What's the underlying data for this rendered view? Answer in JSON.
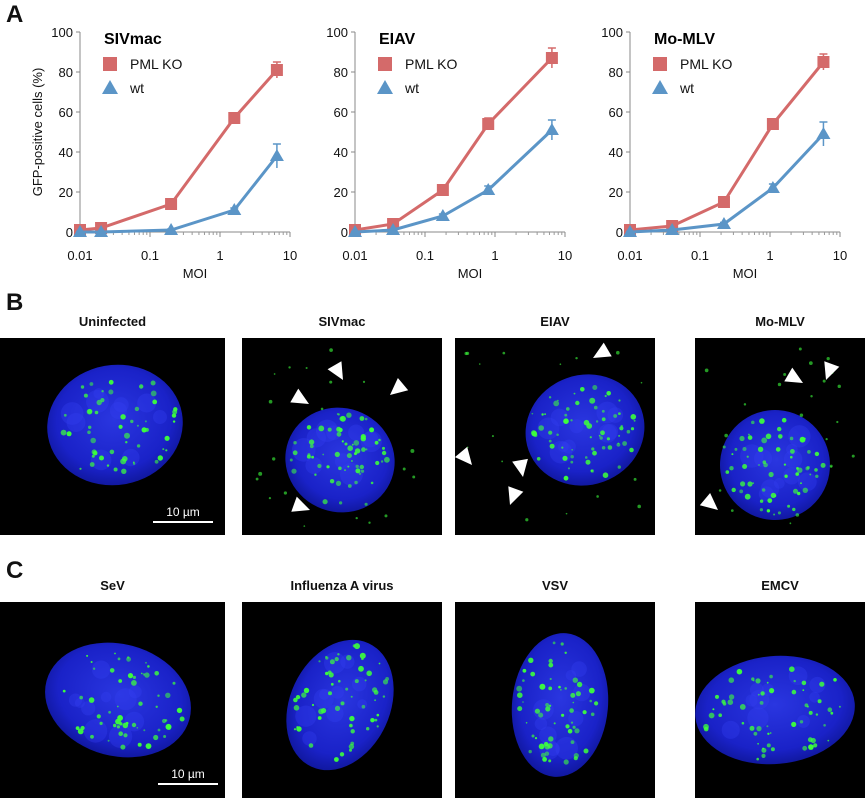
{
  "figure": {
    "panel_a_label": "A",
    "panel_b_label": "B",
    "panel_c_label": "C"
  },
  "chart_data": [
    {
      "type": "line",
      "title": "SIVmac",
      "xlabel": "MOI",
      "ylabel": "GFP-positive cells (%)",
      "x_scale": "log",
      "xlim": [
        0.01,
        10
      ],
      "ylim": [
        0,
        100
      ],
      "x_ticks": [
        "0.01",
        "0.1",
        "1",
        "10"
      ],
      "y_ticks": [
        "0",
        "20",
        "40",
        "60",
        "80",
        "100"
      ],
      "legend_position": "top-left",
      "series": [
        {
          "name": "PML KO",
          "color": "#d46a6a",
          "marker": "square",
          "x": [
            0.01,
            0.02,
            0.2,
            1.6,
            6.5
          ],
          "y": [
            1,
            2,
            14,
            57,
            81
          ],
          "err": [
            0.5,
            0.5,
            1,
            2,
            4
          ]
        },
        {
          "name": "wt",
          "color": "#5b95c7",
          "marker": "triangle",
          "x": [
            0.01,
            0.02,
            0.2,
            1.6,
            6.5
          ],
          "y": [
            0,
            0,
            1,
            11,
            38
          ],
          "err": [
            0.3,
            0.3,
            0.5,
            1,
            6
          ]
        }
      ]
    },
    {
      "type": "line",
      "title": "EIAV",
      "xlabel": "MOI",
      "ylabel": "",
      "x_scale": "log",
      "xlim": [
        0.01,
        10
      ],
      "ylim": [
        0,
        100
      ],
      "x_ticks": [
        "0.01",
        "0.1",
        "1",
        "10"
      ],
      "y_ticks": [
        "0",
        "20",
        "40",
        "60",
        "80",
        "100"
      ],
      "legend_position": "top-left",
      "series": [
        {
          "name": "PML KO",
          "color": "#d46a6a",
          "marker": "square",
          "x": [
            0.01,
            0.035,
            0.18,
            0.8,
            6.5
          ],
          "y": [
            1,
            4,
            21,
            54,
            87
          ],
          "err": [
            0.5,
            0.8,
            1.5,
            3,
            5
          ]
        },
        {
          "name": "wt",
          "color": "#5b95c7",
          "marker": "triangle",
          "x": [
            0.01,
            0.035,
            0.18,
            0.8,
            6.5
          ],
          "y": [
            0,
            1,
            8,
            21,
            51
          ],
          "err": [
            0.3,
            0.4,
            1,
            2,
            5
          ]
        }
      ]
    },
    {
      "type": "line",
      "title": "Mo-MLV",
      "xlabel": "MOI",
      "ylabel": "",
      "x_scale": "log",
      "xlim": [
        0.01,
        10
      ],
      "ylim": [
        0,
        100
      ],
      "x_ticks": [
        "0.01",
        "0.1",
        "1",
        "10"
      ],
      "y_ticks": [
        "0",
        "20",
        "40",
        "60",
        "80",
        "100"
      ],
      "legend_position": "top-left",
      "series": [
        {
          "name": "PML KO",
          "color": "#d46a6a",
          "marker": "square",
          "x": [
            0.01,
            0.04,
            0.22,
            1.1,
            5.8
          ],
          "y": [
            1,
            3,
            15,
            54,
            85
          ],
          "err": [
            0.5,
            0.6,
            1.5,
            2,
            4
          ]
        },
        {
          "name": "wt",
          "color": "#5b95c7",
          "marker": "triangle",
          "x": [
            0.01,
            0.04,
            0.22,
            1.1,
            5.8
          ],
          "y": [
            0,
            1,
            4,
            22,
            49
          ],
          "err": [
            0.3,
            0.4,
            0.8,
            2,
            6
          ]
        }
      ]
    }
  ],
  "micrographs_b": {
    "titles": [
      "Uninfected",
      "SIVmac",
      "EIAV",
      "Mo-MLV"
    ],
    "scale_bar_label": "10 µm"
  },
  "micrographs_c": {
    "titles": [
      "SeV",
      "Influenza  A virus",
      "VSV",
      "EMCV"
    ],
    "scale_bar_label": "10 µm"
  },
  "colors": {
    "nucleus": "#1a22c8",
    "foci": "#3cff3c",
    "arrowhead": "#ffffff",
    "background": "#000000"
  }
}
